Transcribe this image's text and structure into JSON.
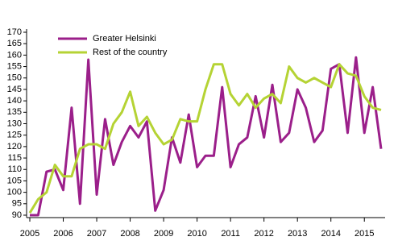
{
  "chart_data": {
    "type": "line",
    "categories": [
      "2005",
      null,
      null,
      null,
      "2006",
      null,
      null,
      null,
      "2007",
      null,
      null,
      null,
      "2008",
      null,
      null,
      null,
      "2009",
      null,
      null,
      null,
      "2010",
      null,
      null,
      null,
      "2011",
      null,
      null,
      null,
      "2012",
      null,
      null,
      null,
      "2013",
      null,
      null,
      null,
      "2014",
      null,
      null,
      null,
      "2015",
      null,
      null
    ],
    "series": [
      {
        "name": "Greater Helsinki",
        "color": "#9b1f8a",
        "values": [
          90,
          90,
          109,
          110,
          101,
          137,
          95,
          158,
          99,
          132,
          112,
          122,
          129,
          124,
          131,
          92,
          101,
          124,
          113,
          134,
          111,
          116,
          116,
          146,
          111,
          121,
          124,
          142,
          124,
          147,
          122,
          126,
          145,
          137,
          122,
          127,
          154,
          156,
          126,
          159,
          126,
          146,
          119
        ]
      },
      {
        "name": "Rest of the country",
        "color": "#b5d334",
        "values": [
          91,
          97,
          100,
          112,
          107,
          107,
          119,
          121,
          121,
          119,
          130,
          135,
          144,
          129,
          133,
          126,
          121,
          123,
          132,
          131,
          131,
          145,
          156,
          156,
          143,
          138,
          143,
          137,
          141,
          143,
          139,
          155,
          150,
          148,
          150,
          148,
          146,
          156,
          152,
          151,
          142,
          137,
          136
        ]
      }
    ],
    "ylim": [
      90,
      170
    ],
    "yticks": [
      90,
      95,
      100,
      105,
      110,
      115,
      120,
      125,
      130,
      135,
      140,
      145,
      150,
      155,
      160,
      165,
      170
    ],
    "legend": "upper left",
    "grid": false
  }
}
